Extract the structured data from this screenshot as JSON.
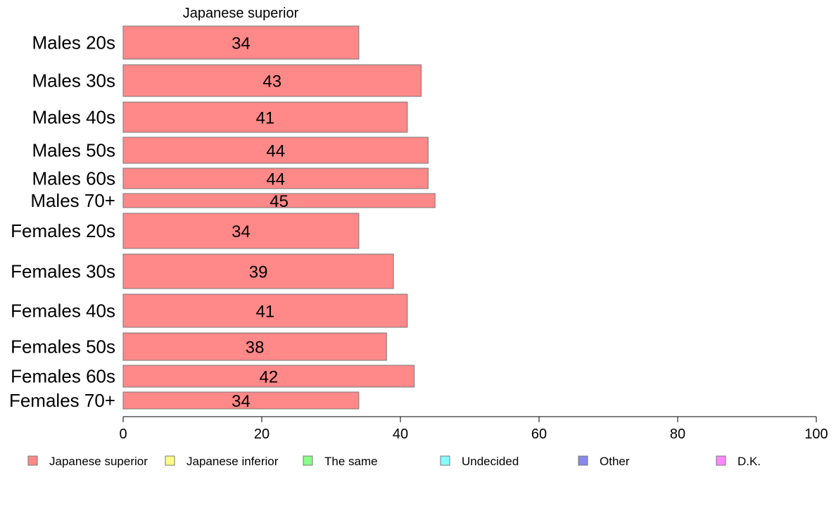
{
  "chart_data": {
    "type": "bar",
    "orientation": "horizontal",
    "title": "",
    "header_label": "Japanese superior",
    "categories": [
      "Males 20s",
      "Males 30s",
      "Males 40s",
      "Males 50s",
      "Males 60s",
      "Males 70+",
      "Females 20s",
      "Females 30s",
      "Females 40s",
      "Females 50s",
      "Females 60s",
      "Females 70+"
    ],
    "series": [
      {
        "name": "Japanese superior",
        "color": "#ff8888",
        "values": [
          34,
          43,
          41,
          44,
          44,
          45,
          34,
          39,
          41,
          38,
          42,
          34
        ]
      }
    ],
    "xlim": [
      0,
      100
    ],
    "xticks": [
      0,
      20,
      40,
      60,
      80,
      100
    ],
    "grid": false,
    "legend": {
      "placement": "bottom",
      "items": [
        {
          "label": "Japanese superior",
          "color": "#ff8888"
        },
        {
          "label": "Japanese inferior",
          "color": "#ffff88"
        },
        {
          "label": "The same",
          "color": "#88ff88"
        },
        {
          "label": "Undecided",
          "color": "#88ffff"
        },
        {
          "label": "Other",
          "color": "#8888ee"
        },
        {
          "label": "D.K.",
          "color": "#ff88ff"
        }
      ]
    }
  }
}
